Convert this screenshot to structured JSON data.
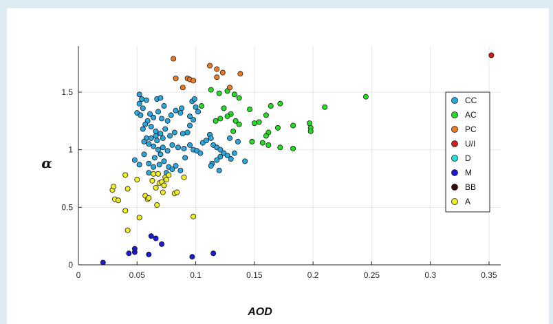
{
  "chart_data": {
    "type": "scatter",
    "xlabel": "AOD",
    "ylabel": "α",
    "xlim": [
      0,
      0.36
    ],
    "ylim": [
      0,
      1.9
    ],
    "xticks": [
      "0",
      "0.05",
      "0.1",
      "0.15",
      "0.2",
      "0.25",
      "0.3",
      "0.35"
    ],
    "xtick_values": [
      0,
      0.05,
      0.1,
      0.15,
      0.2,
      0.25,
      0.3,
      0.35
    ],
    "yticks": [
      "0",
      "0.5",
      "1",
      "1.5"
    ],
    "ytick_values": [
      0,
      0.5,
      1,
      1.5
    ],
    "grid": true,
    "legend_position": "right",
    "series": [
      {
        "name": "CC",
        "color": "#29a8e0",
        "points": [
          [
            0.052,
            1.48
          ],
          [
            0.054,
            1.44
          ],
          [
            0.058,
            1.43
          ],
          [
            0.052,
            1.4
          ],
          [
            0.055,
            1.36
          ],
          [
            0.05,
            1.32
          ],
          [
            0.053,
            1.3
          ],
          [
            0.061,
            1.31
          ],
          [
            0.067,
            1.44
          ],
          [
            0.07,
            1.45
          ],
          [
            0.073,
            1.38
          ],
          [
            0.068,
            1.33
          ],
          [
            0.064,
            1.28
          ],
          [
            0.059,
            1.25
          ],
          [
            0.057,
            1.22
          ],
          [
            0.055,
            1.18
          ],
          [
            0.062,
            1.2
          ],
          [
            0.066,
            1.16
          ],
          [
            0.071,
            1.27
          ],
          [
            0.076,
            1.25
          ],
          [
            0.079,
            1.3
          ],
          [
            0.083,
            1.34
          ],
          [
            0.088,
            1.36
          ],
          [
            0.087,
            1.32
          ],
          [
            0.095,
            1.29
          ],
          [
            0.097,
            1.42
          ],
          [
            0.099,
            1.44
          ],
          [
            0.1,
            1.37
          ],
          [
            0.102,
            1.33
          ],
          [
            0.098,
            1.26
          ],
          [
            0.095,
            1.21
          ],
          [
            0.093,
            1.15
          ],
          [
            0.089,
            1.14
          ],
          [
            0.082,
            1.15
          ],
          [
            0.074,
            1.18
          ],
          [
            0.07,
            1.14
          ],
          [
            0.066,
            1.12
          ],
          [
            0.062,
            1.1
          ],
          [
            0.058,
            1.1
          ],
          [
            0.056,
            1.07
          ],
          [
            0.06,
            1.05
          ],
          [
            0.064,
            1.03
          ],
          [
            0.068,
            1.0
          ],
          [
            0.072,
            1.02
          ],
          [
            0.076,
            0.99
          ],
          [
            0.08,
            1.04
          ],
          [
            0.085,
            1.02
          ],
          [
            0.09,
            1.01
          ],
          [
            0.095,
            1.04
          ],
          [
            0.098,
            1.0
          ],
          [
            0.101,
            0.99
          ],
          [
            0.104,
            0.97
          ],
          [
            0.106,
            1.06
          ],
          [
            0.109,
            1.08
          ],
          [
            0.112,
            1.13
          ],
          [
            0.113,
            1.1
          ],
          [
            0.115,
            1.04
          ],
          [
            0.118,
            1.02
          ],
          [
            0.121,
            1.0
          ],
          [
            0.124,
            0.97
          ],
          [
            0.127,
            0.95
          ],
          [
            0.13,
            0.92
          ],
          [
            0.121,
            0.94
          ],
          [
            0.118,
            0.91
          ],
          [
            0.114,
            0.88
          ],
          [
            0.113,
            0.86
          ],
          [
            0.12,
            0.82
          ],
          [
            0.133,
            0.97
          ],
          [
            0.136,
            1.07
          ],
          [
            0.129,
            1.1
          ],
          [
            0.142,
            0.9
          ],
          [
            0.048,
            0.91
          ],
          [
            0.052,
            0.87
          ],
          [
            0.06,
            0.88
          ],
          [
            0.065,
            0.93
          ],
          [
            0.07,
            0.96
          ],
          [
            0.073,
            0.9
          ],
          [
            0.077,
            0.85
          ],
          [
            0.08,
            0.83
          ],
          [
            0.083,
            0.86
          ],
          [
            0.087,
            0.82
          ],
          [
            0.091,
            0.93
          ],
          [
            0.064,
            0.85
          ],
          [
            0.075,
            0.8
          ],
          [
            0.06,
            0.8
          ],
          [
            0.056,
            0.96
          ],
          [
            0.069,
            0.87
          ],
          [
            0.072,
            1.1
          ],
          [
            0.067,
            1.08
          ],
          [
            0.078,
            1.12
          ]
        ]
      },
      {
        "name": "AC",
        "color": "#22dd22",
        "points": [
          [
            0.113,
            1.52
          ],
          [
            0.12,
            1.49
          ],
          [
            0.127,
            1.51
          ],
          [
            0.133,
            1.48
          ],
          [
            0.137,
            1.45
          ],
          [
            0.105,
            1.38
          ],
          [
            0.124,
            1.36
          ],
          [
            0.13,
            1.31
          ],
          [
            0.127,
            1.29
          ],
          [
            0.121,
            1.27
          ],
          [
            0.117,
            1.25
          ],
          [
            0.134,
            1.25
          ],
          [
            0.137,
            1.22
          ],
          [
            0.132,
            1.16
          ],
          [
            0.146,
            1.35
          ],
          [
            0.15,
            1.23
          ],
          [
            0.154,
            1.24
          ],
          [
            0.148,
            1.07
          ],
          [
            0.16,
            1.3
          ],
          [
            0.164,
            1.38
          ],
          [
            0.172,
            1.4
          ],
          [
            0.17,
            1.19
          ],
          [
            0.162,
            1.15
          ],
          [
            0.16,
            1.12
          ],
          [
            0.157,
            1.06
          ],
          [
            0.162,
            1.04
          ],
          [
            0.172,
            1.02
          ],
          [
            0.183,
            1.01
          ],
          [
            0.183,
            1.21
          ],
          [
            0.197,
            1.23
          ],
          [
            0.198,
            1.19
          ],
          [
            0.198,
            1.16
          ],
          [
            0.21,
            1.37
          ],
          [
            0.245,
            1.46
          ]
        ]
      },
      {
        "name": "PC",
        "color": "#ee7a22",
        "points": [
          [
            0.081,
            1.79
          ],
          [
            0.083,
            1.62
          ],
          [
            0.093,
            1.62
          ],
          [
            0.095,
            1.61
          ],
          [
            0.098,
            1.6
          ],
          [
            0.089,
            1.54
          ],
          [
            0.112,
            1.73
          ],
          [
            0.118,
            1.7
          ],
          [
            0.123,
            1.67
          ],
          [
            0.118,
            1.63
          ],
          [
            0.129,
            1.54
          ],
          [
            0.138,
            1.66
          ]
        ]
      },
      {
        "name": "U/I",
        "color": "#cc2020",
        "points": [
          [
            0.352,
            1.82
          ]
        ]
      },
      {
        "name": "D",
        "color": "#22e0e0",
        "points": []
      },
      {
        "name": "M",
        "color": "#1a1ad4",
        "points": [
          [
            0.021,
            0.02
          ],
          [
            0.043,
            0.1
          ],
          [
            0.048,
            0.11
          ],
          [
            0.048,
            0.14
          ],
          [
            0.06,
            0.09
          ],
          [
            0.062,
            0.25
          ],
          [
            0.066,
            0.23
          ],
          [
            0.071,
            0.18
          ],
          [
            0.097,
            0.07
          ],
          [
            0.115,
            0.1
          ]
        ]
      },
      {
        "name": "BB",
        "color": "#3a0a0a",
        "points": []
      },
      {
        "name": "A",
        "color": "#eeee22",
        "points": [
          [
            0.029,
            0.65
          ],
          [
            0.03,
            0.68
          ],
          [
            0.031,
            0.57
          ],
          [
            0.034,
            0.56
          ],
          [
            0.04,
            0.78
          ],
          [
            0.042,
            0.66
          ],
          [
            0.04,
            0.47
          ],
          [
            0.042,
            0.3
          ],
          [
            0.05,
            0.74
          ],
          [
            0.052,
            0.41
          ],
          [
            0.057,
            0.6
          ],
          [
            0.059,
            0.57
          ],
          [
            0.06,
            0.58
          ],
          [
            0.063,
            0.73
          ],
          [
            0.064,
            0.79
          ],
          [
            0.066,
            0.67
          ],
          [
            0.068,
            0.79
          ],
          [
            0.069,
            0.71
          ],
          [
            0.071,
            0.72
          ],
          [
            0.073,
            0.69
          ],
          [
            0.074,
            0.76
          ],
          [
            0.075,
            0.74
          ],
          [
            0.077,
            0.78
          ],
          [
            0.072,
            0.63
          ],
          [
            0.067,
            0.52
          ],
          [
            0.082,
            0.62
          ],
          [
            0.084,
            0.63
          ],
          [
            0.09,
            0.76
          ],
          [
            0.098,
            0.42
          ]
        ]
      }
    ]
  }
}
